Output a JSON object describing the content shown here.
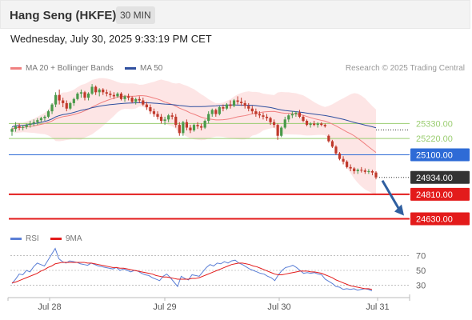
{
  "header": {
    "title": "Hang Seng (HKFE)",
    "timeframe": "30 MIN"
  },
  "date_line": "Wednesday, July 30, 2025 9:33:19 PM CET",
  "copyright": "Research © 2025 Trading Central",
  "legend": {
    "ma20": "MA 20 + Bollinger Bands",
    "ma50": "MA 50",
    "rsi": "RSI",
    "rsi_ma": "9MA"
  },
  "colors": {
    "ma20": "#f08080",
    "ma50": "#2f4f9f",
    "band": "#fcdede",
    "up": "#4a9a4a",
    "down": "#c0392b",
    "resistance": "#9acd70",
    "pivot": "#2e6bd6",
    "support": "#e31b1b",
    "last": "#333333",
    "arrow": "#2f5fa0",
    "rsi": "#5b7fd6",
    "rsi_ma": "#e31b1b"
  },
  "chart_data": [
    {
      "type": "candlestick",
      "x_labels": [
        "Jul 28",
        "Jul 29",
        "Jul 30",
        "Jul 31"
      ],
      "y_range": [
        24580,
        25650
      ],
      "levels": [
        {
          "value": 25330,
          "label": "25330.00",
          "kind": "resistance"
        },
        {
          "value": 25220,
          "label": "25220.00",
          "kind": "resistance"
        },
        {
          "value": 25100,
          "label": "25100.00",
          "kind": "pivot"
        },
        {
          "value": 24934,
          "label": "24934.00",
          "kind": "last"
        },
        {
          "value": 24810,
          "label": "24810.00",
          "kind": "support"
        },
        {
          "value": 24630,
          "label": "24630.00",
          "kind": "support"
        }
      ],
      "candles": [
        [
          25270,
          25300,
          25240,
          25290
        ],
        [
          25290,
          25340,
          25270,
          25310
        ],
        [
          25310,
          25330,
          25280,
          25300
        ],
        [
          25300,
          25320,
          25280,
          25305
        ],
        [
          25305,
          25330,
          25290,
          25320
        ],
        [
          25320,
          25350,
          25300,
          25330
        ],
        [
          25330,
          25360,
          25310,
          25340
        ],
        [
          25340,
          25370,
          25320,
          25355
        ],
        [
          25355,
          25380,
          25340,
          25370
        ],
        [
          25370,
          25390,
          25350,
          25380
        ],
        [
          25380,
          25430,
          25370,
          25420
        ],
        [
          25420,
          25480,
          25400,
          25470
        ],
        [
          25470,
          25560,
          25450,
          25540
        ],
        [
          25540,
          25580,
          25470,
          25500
        ],
        [
          25500,
          25520,
          25450,
          25480
        ],
        [
          25480,
          25500,
          25420,
          25440
        ],
        [
          25440,
          25490,
          25430,
          25480
        ],
        [
          25480,
          25520,
          25460,
          25510
        ],
        [
          25510,
          25560,
          25500,
          25550
        ],
        [
          25550,
          25580,
          25520,
          25560
        ],
        [
          25560,
          25570,
          25500,
          25520
        ],
        [
          25520,
          25560,
          25500,
          25550
        ],
        [
          25550,
          25620,
          25540,
          25600
        ],
        [
          25600,
          25610,
          25540,
          25560
        ],
        [
          25560,
          25590,
          25530,
          25580
        ],
        [
          25580,
          25590,
          25540,
          25560
        ],
        [
          25560,
          25580,
          25530,
          25550
        ],
        [
          25550,
          25570,
          25520,
          25540
        ],
        [
          25540,
          25560,
          25510,
          25530
        ],
        [
          25530,
          25560,
          25520,
          25550
        ],
        [
          25550,
          25560,
          25500,
          25510
        ],
        [
          25510,
          25540,
          25490,
          25530
        ],
        [
          25530,
          25550,
          25500,
          25520
        ],
        [
          25520,
          25530,
          25480,
          25490
        ],
        [
          25490,
          25520,
          25470,
          25510
        ],
        [
          25510,
          25530,
          25480,
          25500
        ],
        [
          25500,
          25520,
          25460,
          25470
        ],
        [
          25470,
          25490,
          25430,
          25450
        ],
        [
          25450,
          25470,
          25400,
          25420
        ],
        [
          25420,
          25440,
          25380,
          25400
        ],
        [
          25400,
          25420,
          25360,
          25380
        ],
        [
          25380,
          25400,
          25330,
          25350
        ],
        [
          25350,
          25380,
          25320,
          25360
        ],
        [
          25360,
          25400,
          25340,
          25390
        ],
        [
          25390,
          25410,
          25360,
          25380
        ],
        [
          25380,
          25400,
          25300,
          25320
        ],
        [
          25320,
          25340,
          25240,
          25260
        ],
        [
          25260,
          25350,
          25240,
          25340
        ],
        [
          25340,
          25360,
          25280,
          25300
        ],
        [
          25300,
          25320,
          25260,
          25280
        ],
        [
          25280,
          25330,
          25270,
          25320
        ],
        [
          25320,
          25340,
          25290,
          25310
        ],
        [
          25310,
          25330,
          25280,
          25300
        ],
        [
          25300,
          25360,
          25290,
          25350
        ],
        [
          25350,
          25420,
          25330,
          25400
        ],
        [
          25400,
          25440,
          25380,
          25430
        ],
        [
          25430,
          25440,
          25380,
          25400
        ],
        [
          25400,
          25460,
          25390,
          25450
        ],
        [
          25450,
          25470,
          25420,
          25440
        ],
        [
          25440,
          25480,
          25430,
          25470
        ],
        [
          25470,
          25500,
          25440,
          25460
        ],
        [
          25460,
          25510,
          25450,
          25500
        ],
        [
          25500,
          25530,
          25470,
          25490
        ],
        [
          25490,
          25520,
          25460,
          25480
        ],
        [
          25480,
          25500,
          25440,
          25460
        ],
        [
          25460,
          25480,
          25420,
          25440
        ],
        [
          25440,
          25460,
          25400,
          25420
        ],
        [
          25420,
          25440,
          25380,
          25400
        ],
        [
          25400,
          25420,
          25370,
          25390
        ],
        [
          25390,
          25410,
          25360,
          25380
        ],
        [
          25380,
          25400,
          25350,
          25370
        ],
        [
          25370,
          25380,
          25320,
          25340
        ],
        [
          25340,
          25360,
          25300,
          25320
        ],
        [
          25320,
          25330,
          25210,
          25240
        ],
        [
          25240,
          25310,
          25230,
          25300
        ],
        [
          25300,
          25380,
          25290,
          25360
        ],
        [
          25360,
          25400,
          25340,
          25390
        ],
        [
          25390,
          25420,
          25370,
          25400
        ],
        [
          25400,
          25420,
          25380,
          25410
        ],
        [
          25410,
          25430,
          25370,
          25380
        ],
        [
          25380,
          25390,
          25340,
          25350
        ],
        [
          25350,
          25360,
          25310,
          25320
        ],
        [
          25320,
          25340,
          25300,
          25330
        ],
        [
          25330,
          25350,
          25310,
          25320
        ],
        [
          25320,
          25340,
          25300,
          25330
        ],
        [
          25330,
          25340,
          25310,
          25320
        ],
        [
          25320,
          25330,
          25300,
          25310
        ],
        [
          25240,
          25250,
          25190,
          25200
        ],
        [
          25200,
          25210,
          25150,
          25160
        ],
        [
          25160,
          25170,
          25100,
          25110
        ],
        [
          25110,
          25120,
          25060,
          25070
        ],
        [
          25070,
          25090,
          25030,
          25050
        ],
        [
          25050,
          25060,
          25000,
          25010
        ],
        [
          25010,
          25030,
          24980,
          25000
        ],
        [
          25000,
          25010,
          24960,
          24980
        ],
        [
          24980,
          25000,
          24960,
          24990
        ],
        [
          24990,
          25010,
          24970,
          24985
        ],
        [
          24985,
          25000,
          24960,
          24975
        ],
        [
          24975,
          24995,
          24960,
          24980
        ],
        [
          24980,
          24990,
          24950,
          24970
        ],
        [
          24970,
          24980,
          24920,
          24934
        ]
      ]
    },
    {
      "type": "line",
      "title": "RSI",
      "y_ticks": [
        30,
        50,
        70
      ],
      "y_range": [
        15,
        85
      ],
      "series": [
        {
          "name": "RSI",
          "values": [
            32,
            38,
            45,
            44,
            50,
            48,
            55,
            60,
            58,
            56,
            64,
            72,
            80,
            66,
            62,
            60,
            63,
            62,
            61,
            59,
            58,
            57,
            60,
            58,
            56,
            55,
            54,
            53,
            52,
            54,
            50,
            52,
            50,
            48,
            50,
            49,
            46,
            44,
            43,
            40,
            38,
            36,
            42,
            45,
            40,
            34,
            28,
            42,
            39,
            37,
            44,
            43,
            42,
            48,
            54,
            58,
            56,
            60,
            59,
            62,
            60,
            63,
            64,
            60,
            58,
            55,
            52,
            50,
            48,
            46,
            45,
            42,
            40,
            36,
            44,
            50,
            54,
            55,
            57,
            54,
            50,
            46,
            47,
            46,
            47,
            45,
            44,
            38,
            35,
            32,
            28,
            27,
            24,
            25,
            24,
            25,
            23,
            24,
            25,
            24,
            22
          ]
        },
        {
          "name": "9MA",
          "values": [
            33,
            34,
            36,
            38,
            40,
            42,
            44,
            46,
            49,
            51,
            54,
            56,
            59,
            60,
            61,
            61,
            61,
            61,
            61,
            61,
            61,
            60,
            60,
            59,
            58,
            57,
            56,
            55,
            54,
            54,
            53,
            53,
            52,
            51,
            50,
            49,
            48,
            47,
            46,
            45,
            43,
            42,
            41,
            41,
            40,
            39,
            38,
            38,
            38,
            38,
            39,
            39,
            40,
            42,
            44,
            46,
            48,
            50,
            52,
            54,
            56,
            58,
            59,
            60,
            60,
            59,
            58,
            56,
            55,
            53,
            51,
            49,
            47,
            45,
            44,
            44,
            45,
            46,
            47,
            48,
            49,
            49,
            49,
            48,
            48,
            47,
            46,
            44,
            42,
            40,
            37,
            35,
            33,
            31,
            29,
            28,
            27,
            26,
            25,
            25,
            24
          ]
        }
      ]
    }
  ]
}
